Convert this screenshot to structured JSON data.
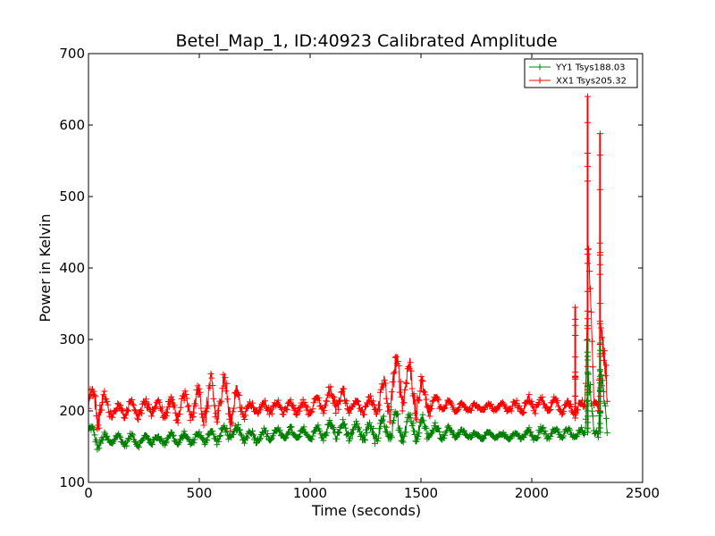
{
  "chart_data": {
    "type": "line",
    "title": "Betel_Map_1, ID:40923 Calibrated Amplitude",
    "xlabel": "Time (seconds)",
    "ylabel": "Power in Kelvin",
    "xlim": [
      0,
      2500
    ],
    "ylim": [
      100,
      700
    ],
    "xticks": [
      "0",
      "500",
      "1000",
      "1500",
      "2000",
      "2500"
    ],
    "yticks": [
      "100",
      "200",
      "300",
      "400",
      "500",
      "600",
      "700"
    ],
    "grid": false,
    "legend_position": "top-right",
    "marker": "+",
    "series": [
      {
        "name": "YY1 Tsys188.03",
        "color": "#008000",
        "x": [
          0,
          40,
          80,
          120,
          160,
          200,
          240,
          280,
          320,
          360,
          400,
          440,
          480,
          520,
          560,
          600,
          640,
          680,
          720,
          760,
          800,
          840,
          880,
          920,
          960,
          1000,
          1040,
          1080,
          1120,
          1160,
          1200,
          1240,
          1280,
          1320,
          1360,
          1400,
          1440,
          1480,
          1520,
          1560,
          1600,
          1640,
          1680,
          1720,
          1760,
          1800,
          1840,
          1880,
          1920,
          1960,
          2000,
          2040,
          2080,
          2120,
          2160,
          2200,
          2240,
          2256,
          2280,
          2300,
          2312,
          2340
        ],
        "y": [
          172,
          160,
          158,
          162,
          158,
          160,
          157,
          162,
          158,
          163,
          160,
          162,
          160,
          165,
          163,
          168,
          170,
          168,
          165,
          165,
          166,
          168,
          168,
          168,
          167,
          168,
          170,
          172,
          175,
          172,
          170,
          170,
          170,
          172,
          175,
          178,
          180,
          178,
          175,
          172,
          170,
          170,
          168,
          167,
          165,
          166,
          165,
          165,
          165,
          166,
          167,
          168,
          170,
          170,
          168,
          168,
          168,
          270,
          165,
          167,
          280,
          165
        ],
        "spread": [
          12,
          15,
          10,
          8,
          8,
          10,
          8,
          9,
          8,
          9,
          10,
          9,
          10,
          12,
          12,
          12,
          14,
          12,
          10,
          10,
          10,
          10,
          10,
          10,
          10,
          10,
          12,
          14,
          15,
          14,
          14,
          16,
          18,
          20,
          22,
          24,
          22,
          20,
          18,
          14,
          10,
          8,
          6,
          6,
          5,
          5,
          5,
          5,
          5,
          5,
          12,
          10,
          10,
          9,
          8,
          8,
          8,
          35,
          8,
          8,
          30,
          8
        ]
      },
      {
        "name": "XX1 Tsys205.32",
        "color": "#ff0000",
        "x": [
          0,
          40,
          80,
          120,
          160,
          200,
          240,
          280,
          320,
          360,
          400,
          440,
          480,
          520,
          560,
          600,
          640,
          680,
          720,
          760,
          800,
          840,
          880,
          920,
          960,
          1000,
          1040,
          1080,
          1120,
          1160,
          1200,
          1240,
          1280,
          1320,
          1360,
          1400,
          1440,
          1480,
          1520,
          1560,
          1600,
          1640,
          1680,
          1720,
          1760,
          1800,
          1840,
          1880,
          1920,
          1960,
          2000,
          2040,
          2080,
          2120,
          2160,
          2200,
          2240,
          2256,
          2280,
          2300,
          2312,
          2340
        ],
        "y": [
          210,
          215,
          205,
          200,
          203,
          205,
          200,
          208,
          203,
          205,
          205,
          208,
          205,
          215,
          210,
          220,
          215,
          208,
          202,
          205,
          205,
          205,
          205,
          205,
          205,
          205,
          210,
          215,
          220,
          212,
          207,
          205,
          208,
          215,
          225,
          245,
          240,
          225,
          215,
          210,
          208,
          207,
          206,
          205,
          204,
          205,
          205,
          205,
          205,
          207,
          210,
          208,
          208,
          208,
          205,
          205,
          205,
          450,
          205,
          205,
          360,
          205
        ],
        "spread": [
          18,
          40,
          15,
          10,
          12,
          15,
          12,
          18,
          15,
          18,
          20,
          25,
          22,
          40,
          45,
          50,
          40,
          20,
          12,
          10,
          10,
          10,
          10,
          10,
          10,
          12,
          14,
          18,
          22,
          15,
          12,
          12,
          15,
          30,
          50,
          70,
          60,
          40,
          25,
          15,
          10,
          8,
          8,
          7,
          7,
          6,
          6,
          7,
          10,
          12,
          15,
          12,
          12,
          12,
          10,
          10,
          10,
          190,
          10,
          10,
          230,
          10
        ]
      }
    ],
    "spikes": [
      {
        "series": "XX1 Tsys205.32",
        "x": 2196,
        "low": 190,
        "high": 345
      },
      {
        "series": "XX1 Tsys205.32",
        "x": 2252,
        "low": 200,
        "high": 640
      },
      {
        "series": "XX1 Tsys205.32",
        "x": 2308,
        "low": 200,
        "high": 588
      },
      {
        "series": "YY1 Tsys188.03",
        "x": 2252,
        "low": 170,
        "high": 300
      },
      {
        "series": "YY1 Tsys188.03",
        "x": 2308,
        "low": 170,
        "high": 295
      }
    ]
  }
}
